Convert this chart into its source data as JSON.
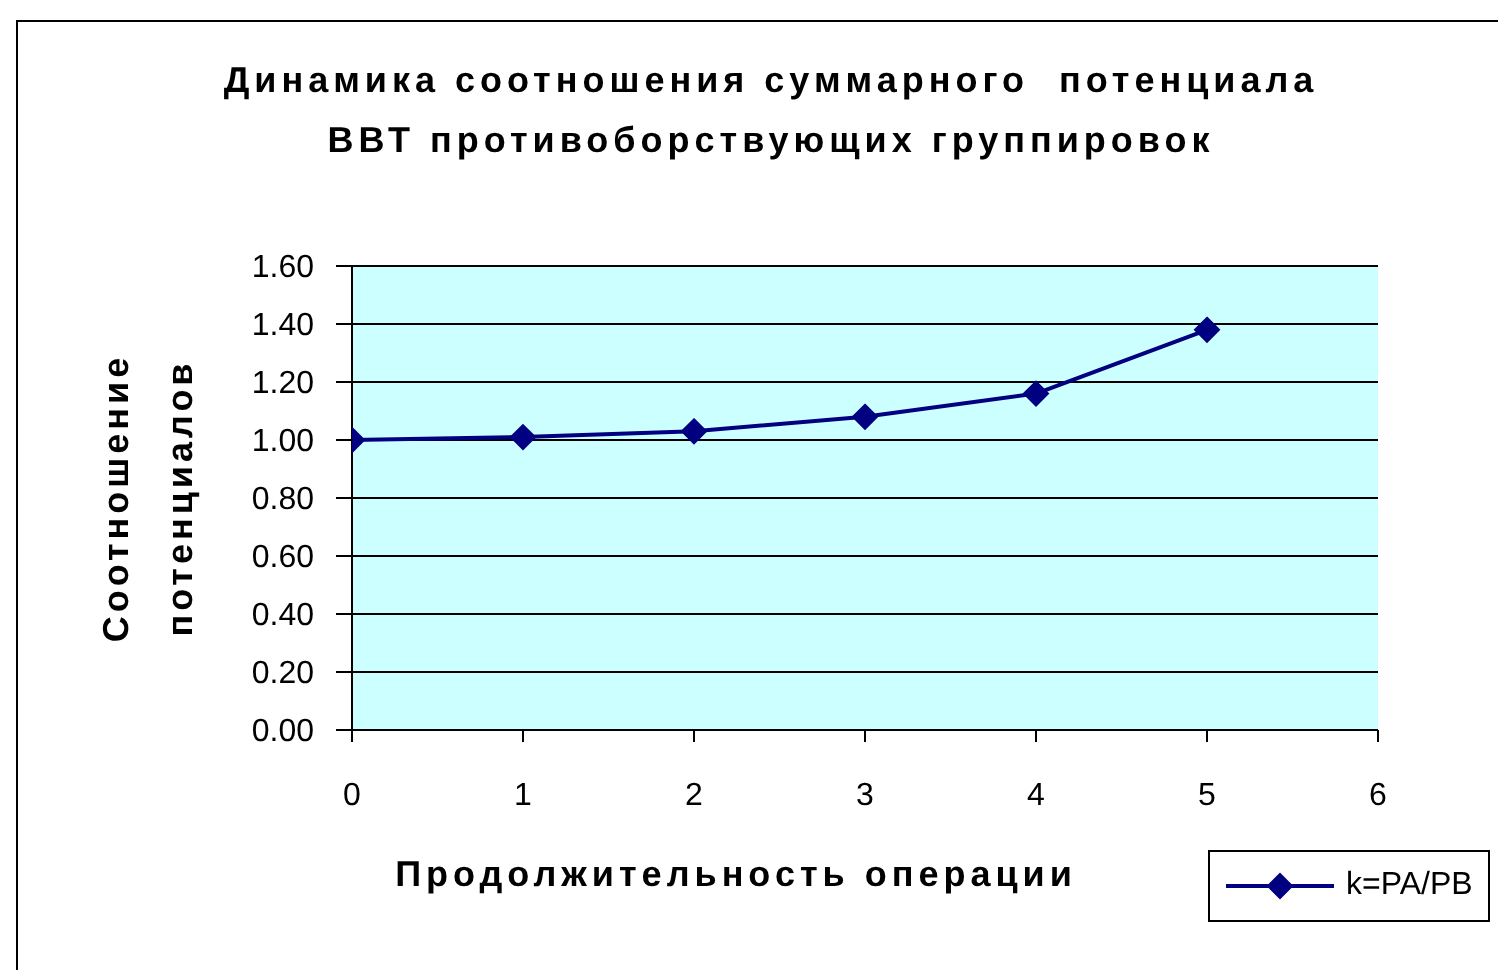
{
  "chart_data": {
    "type": "line",
    "title": "Динамика соотношения суммарного  потенциала ВВТ противоборствующих группировок",
    "xlabel": "Продолжительность операции",
    "ylabel": "Соотношение потенциалов",
    "x": [
      0,
      1,
      2,
      3,
      4,
      5
    ],
    "series": [
      {
        "name": "k=PA/PB",
        "color": "#000080",
        "values": [
          1.0,
          1.01,
          1.03,
          1.08,
          1.16,
          1.38
        ]
      }
    ],
    "xlim": [
      0,
      6
    ],
    "xticks": [
      0,
      1,
      2,
      3,
      4,
      5,
      6
    ],
    "ylim": [
      0,
      1.6
    ],
    "yticks": [
      {
        "value": 0,
        "label": "0.00"
      },
      {
        "value": 0.2,
        "label": "0.20"
      },
      {
        "value": 0.4,
        "label": "0.40"
      },
      {
        "value": 0.6,
        "label": "0.60"
      },
      {
        "value": 0.8,
        "label": "0.80"
      },
      {
        "value": 1,
        "label": "1.00"
      },
      {
        "value": 1.2,
        "label": "1.20"
      },
      {
        "value": 1.4,
        "label": "1.40"
      },
      {
        "value": 1.6,
        "label": "1.60"
      }
    ],
    "grid": "y",
    "legend": "bottom right",
    "marker": "diamond"
  }
}
